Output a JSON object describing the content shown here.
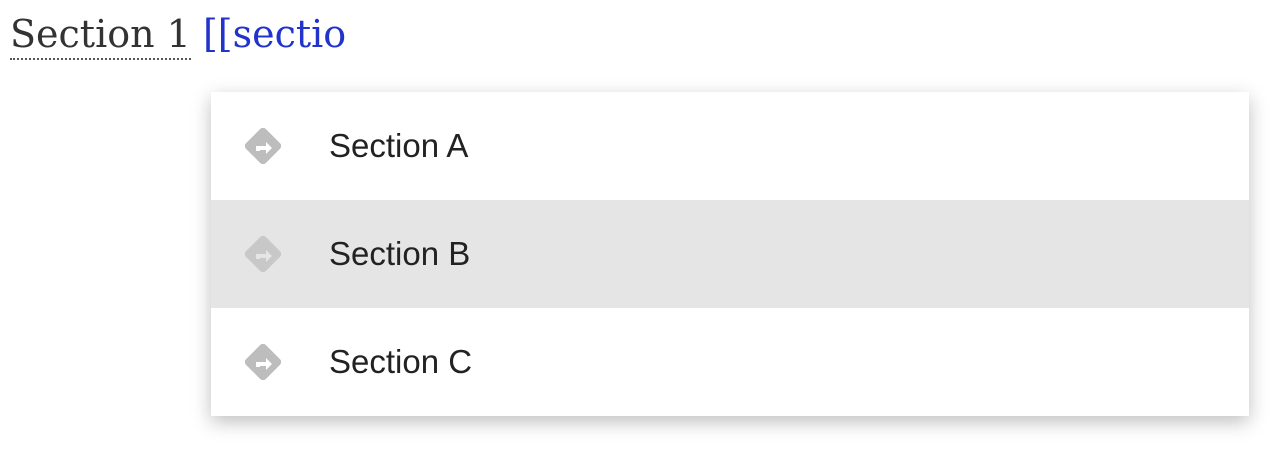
{
  "editor": {
    "link_text": "Section 1",
    "typed_text": "[[sectio"
  },
  "menu": {
    "items": [
      {
        "label": "Section A",
        "icon": "direction-sign-icon",
        "selected": false
      },
      {
        "label": "Section B",
        "icon": "direction-sign-icon",
        "selected": true
      },
      {
        "label": "Section C",
        "icon": "direction-sign-icon",
        "selected": false
      }
    ]
  },
  "colors": {
    "typed": "#2233cc",
    "selected_bg": "#e5e5e5",
    "icon": "#bdbdbd"
  }
}
